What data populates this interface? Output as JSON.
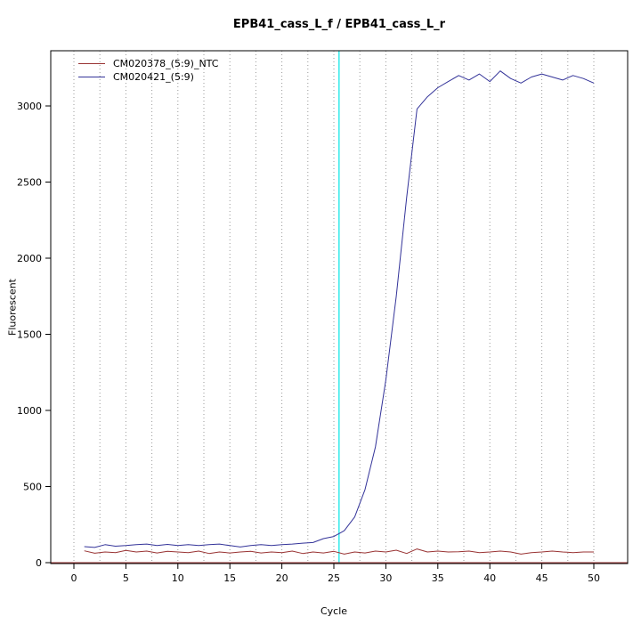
{
  "chart_data": {
    "type": "line",
    "title": "EPB41_cass_L_f / EPB41_cass_L_r",
    "xlabel": "Cycle",
    "ylabel": "Fluorescent",
    "xlim": [
      0,
      50
    ],
    "ylim": [
      0,
      3300
    ],
    "x_ticks": [
      0,
      5,
      10,
      15,
      20,
      25,
      30,
      35,
      40,
      45,
      50
    ],
    "y_ticks": [
      0,
      500,
      1000,
      1500,
      2000,
      2500,
      3000
    ],
    "grid": {
      "vertical_step": 2.5,
      "color": "#9a9a9a",
      "style": "dotted"
    },
    "legend_position": "top-left",
    "threshold_line": {
      "y": 0,
      "color": "#993333"
    },
    "ct_marker_line": {
      "x": 25.5,
      "color": "#00e5e5"
    },
    "x": [
      1,
      2,
      3,
      4,
      5,
      6,
      7,
      8,
      9,
      10,
      11,
      12,
      13,
      14,
      15,
      16,
      17,
      18,
      19,
      20,
      21,
      22,
      23,
      24,
      25,
      26,
      27,
      28,
      29,
      30,
      31,
      32,
      33,
      34,
      35,
      36,
      37,
      38,
      39,
      40,
      41,
      42,
      43,
      44,
      45,
      46,
      47,
      48,
      49,
      50
    ],
    "series": [
      {
        "name": "CM020378_(5:9)_NTC",
        "color": "#993333",
        "values": [
          78,
          62,
          70,
          66,
          80,
          70,
          76,
          64,
          74,
          70,
          66,
          76,
          60,
          70,
          64,
          70,
          74,
          64,
          70,
          66,
          76,
          60,
          70,
          64,
          74,
          56,
          70,
          64,
          76,
          70,
          82,
          60,
          90,
          70,
          76,
          70,
          72,
          76,
          66,
          70,
          76,
          70,
          56,
          66,
          70,
          76,
          70,
          66,
          70,
          70
        ]
      },
      {
        "name": "CM020421_(5:9)",
        "color": "#333399",
        "values": [
          105,
          100,
          118,
          108,
          112,
          118,
          122,
          112,
          120,
          112,
          118,
          112,
          118,
          122,
          112,
          103,
          112,
          118,
          112,
          118,
          122,
          128,
          132,
          158,
          172,
          210,
          300,
          480,
          760,
          1200,
          1750,
          2400,
          2980,
          3060,
          3120,
          3160,
          3200,
          3170,
          3210,
          3160,
          3230,
          3180,
          3150,
          3190,
          3210,
          3190,
          3170,
          3200,
          3180,
          3150
        ]
      }
    ]
  }
}
